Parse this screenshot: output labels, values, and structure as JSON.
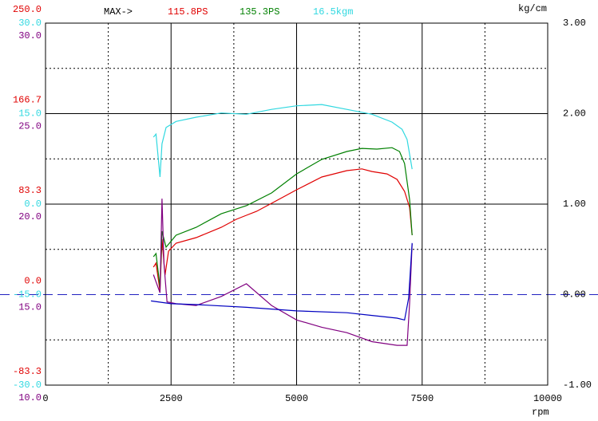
{
  "chart_data": {
    "type": "line",
    "max_labels": [
      {
        "text": "MAX->",
        "color": "#000000"
      },
      {
        "text": "115.8PS",
        "color": "#e00000"
      },
      {
        "text": "135.3PS",
        "color": "#008000"
      },
      {
        "text": "16.5kgm",
        "color": "#30d8e0"
      }
    ],
    "y2_label": "kg/cm",
    "x_label": "rpm",
    "xlim": [
      0,
      10000
    ],
    "xticks": [
      0,
      2500,
      5000,
      7500,
      10000
    ],
    "grid": true,
    "y_axes": [
      {
        "color": "#e00000",
        "lim": [
          -83.3,
          250
        ],
        "ticks": [
          {
            "value": 250,
            "label": "250.0"
          },
          166.7,
          83.3,
          {
            "value": 0,
            "label": "0.0"
          },
          -83.3
        ]
      },
      {
        "color": "#30d8e0",
        "lim": [
          -30,
          30
        ],
        "ticks": [
          {
            "value": 30,
            "label": "30.0"
          },
          {
            "value": 15,
            "label": "15.0"
          },
          {
            "value": 0,
            "label": "0.0"
          },
          {
            "value": -15,
            "label": "-15.0"
          },
          {
            "value": -30,
            "label": "-30.0"
          }
        ]
      },
      {
        "color": "#800080",
        "lim": [
          10,
          30
        ],
        "ticks": [
          {
            "value": 30,
            "label": "30.0"
          },
          {
            "value": 25,
            "label": "25.0"
          },
          {
            "value": 20,
            "label": "20.0"
          },
          {
            "value": 15,
            "label": "15.0"
          },
          {
            "value": 10,
            "label": "10.0"
          }
        ]
      }
    ],
    "y2lim": [
      -1,
      3
    ],
    "y2ticks": [
      {
        "value": 3,
        "label": "3.00"
      },
      {
        "value": 2,
        "label": "2.00"
      },
      {
        "value": 1,
        "label": "1.00"
      },
      {
        "value": 0,
        "label": "0.00"
      },
      {
        "value": -1,
        "label": "-1.00"
      }
    ],
    "series": [
      {
        "color": "#e00000",
        "axis": 0,
        "x": [
          2150,
          2200,
          2280,
          2320,
          2380,
          2450,
          2600,
          3000,
          3500,
          3800,
          4000,
          4200,
          4500,
          5000,
          5500,
          6000,
          6300,
          6500,
          6800,
          7000,
          7150,
          7250,
          7300
        ],
        "values": [
          25.3,
          29.0,
          3.3,
          51.0,
          18.0,
          40.0,
          47.4,
          52.5,
          62.0,
          69.4,
          73.1,
          76.7,
          84.1,
          96.6,
          108.3,
          114.2,
          115.8,
          113.4,
          111.2,
          106.1,
          95.1,
          80.4,
          54.7
        ]
      },
      {
        "color": "#008000",
        "axis": 0,
        "x": [
          2150,
          2200,
          2280,
          2320,
          2400,
          2600,
          3000,
          3500,
          4000,
          4500,
          5000,
          5500,
          6000,
          6300,
          6600,
          6900,
          7050,
          7150,
          7250,
          7300
        ],
        "values": [
          34.9,
          37.8,
          7.0,
          58.4,
          43.7,
          54.7,
          62.0,
          74.5,
          81.9,
          93.6,
          111.2,
          124.5,
          131.8,
          134.7,
          134.0,
          135.3,
          131.8,
          120.8,
          87.7,
          54.7
        ]
      },
      {
        "color": "#30d8e0",
        "axis": 1,
        "x": [
          2150,
          2200,
          2280,
          2320,
          2400,
          2600,
          3000,
          3500,
          4000,
          4500,
          5000,
          5500,
          6000,
          6500,
          6900,
          7100,
          7200,
          7300
        ],
        "values": [
          11.1,
          11.6,
          4.5,
          10.0,
          12.7,
          13.7,
          14.4,
          15.1,
          14.9,
          15.7,
          16.3,
          16.5,
          15.7,
          14.9,
          13.6,
          12.4,
          10.7,
          5.8
        ]
      },
      {
        "color": "#800080",
        "axis": 2,
        "x": [
          2150,
          2280,
          2320,
          2360,
          2420,
          2600,
          3000,
          3500,
          4000,
          4500,
          5000,
          5500,
          6000,
          6500,
          7000,
          7200,
          7250,
          7300
        ],
        "values": [
          16.1,
          15.1,
          20.3,
          16.7,
          14.6,
          14.5,
          14.4,
          14.9,
          15.6,
          14.4,
          13.6,
          13.2,
          12.9,
          12.4,
          12.2,
          12.2,
          14.5,
          17.8
        ]
      },
      {
        "color": "#0000c0",
        "axis": "y2",
        "x": [
          2100,
          2500,
          3000,
          4000,
          5000,
          6000,
          6500,
          7000,
          7150,
          7230,
          7300
        ],
        "values": [
          -0.07,
          -0.1,
          -0.11,
          -0.14,
          -0.18,
          -0.2,
          -0.23,
          -0.26,
          -0.28,
          -0.04,
          0.57
        ]
      }
    ]
  }
}
